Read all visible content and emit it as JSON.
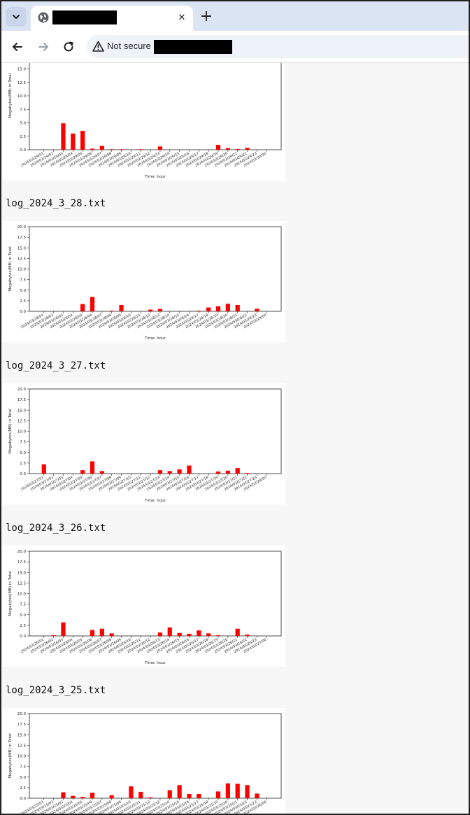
{
  "browser": {
    "tab_title": "",
    "url_security": "Not secure",
    "url": "",
    "tab_close_glyph": "✕",
    "new_tab_glyph": "+"
  },
  "colors": {
    "bar": "#ff0000",
    "tabstrip": "#dbe4f3"
  },
  "content": {
    "logs": [
      {
        "filename": ""
      },
      {
        "filename": "log_2024_3_28.txt"
      },
      {
        "filename": "log_2024_3_27.txt"
      },
      {
        "filename": "log_2024_3_26.txt"
      },
      {
        "filename": "log_2024_3_25.txt"
      }
    ]
  },
  "chart_data": [
    {
      "type": "bar",
      "ylabel": "Megabytes(MB) in Total",
      "xlabel": "Time: hour",
      "ylim": [
        0,
        20
      ],
      "yticks": [
        "0.0",
        "2.5",
        "5.0",
        "7.5",
        "10.0",
        "12.5",
        "15.0",
        "17.5",
        "20.0"
      ],
      "categories": [
        "2024/03/29/01",
        "2024/03/29/02",
        "2024/03/29/03",
        "2024/03/29/04",
        "2024/03/29/05",
        "2024/03/29/06",
        "2024/03/29/07",
        "2024/03/29/08",
        "2024/03/29/09",
        "2024/03/29/10",
        "2024/03/29/11",
        "2024/03/29/12",
        "2024/03/29/13",
        "2024/03/29/14",
        "2024/03/29/15",
        "2024/03/29/16",
        "2024/03/29/17",
        "2024/03/29/18",
        "2024/03/29/19",
        "2024/03/29/20",
        "2024/03/29/21",
        "2024/03/29/22",
        "2024/03/29/23",
        "2024/03/30/00"
      ],
      "values": [
        0,
        0,
        4.9,
        3.0,
        3.5,
        0.2,
        0.7,
        0.1,
        0.1,
        0,
        0.1,
        0,
        0.6,
        0,
        0,
        0,
        0,
        0,
        0.9,
        0.3,
        0.15,
        0.35,
        0,
        0
      ]
    },
    {
      "type": "bar",
      "ylabel": "Megabytes(MB) in Total",
      "xlabel": "Time: hour",
      "ylim": [
        0,
        20
      ],
      "yticks": [
        "0.0",
        "2.5",
        "5.0",
        "7.5",
        "10.0",
        "12.5",
        "15.0",
        "17.5",
        "20.0"
      ],
      "categories": [
        "2024/03/28/01",
        "2024/03/28/02",
        "2024/03/28/03",
        "2024/03/28/04",
        "2024/03/28/05",
        "2024/03/28/06",
        "2024/03/28/07",
        "2024/03/28/08",
        "2024/03/28/09",
        "2024/03/28/10",
        "2024/03/28/11",
        "2024/03/28/12",
        "2024/03/28/13",
        "2024/03/28/14",
        "2024/03/28/15",
        "2024/03/28/16",
        "2024/03/28/17",
        "2024/03/28/18",
        "2024/03/28/19",
        "2024/03/28/20",
        "2024/03/28/21",
        "2024/03/28/22",
        "2024/03/28/23",
        "2024/03/29/00"
      ],
      "values": [
        0,
        0,
        0,
        0,
        1.7,
        3.4,
        0,
        0.15,
        1.5,
        0,
        0,
        0.4,
        0.55,
        0,
        0,
        0,
        0.15,
        0.9,
        1.2,
        1.8,
        1.5,
        0,
        0.6,
        0
      ]
    },
    {
      "type": "bar",
      "ylabel": "Megabytes(MB) in Total",
      "xlabel": "Time: hour",
      "ylim": [
        0,
        20
      ],
      "yticks": [
        "0.0",
        "2.5",
        "5.0",
        "7.5",
        "10.0",
        "12.5",
        "15.0",
        "17.5",
        "20.0"
      ],
      "categories": [
        "2024/03/27/01",
        "2024/03/27/02",
        "2024/03/27/03",
        "2024/03/27/04",
        "2024/03/27/05",
        "2024/03/27/06",
        "2024/03/27/07",
        "2024/03/27/08",
        "2024/03/27/09",
        "2024/03/27/10",
        "2024/03/27/11",
        "2024/03/27/12",
        "2024/03/27/13",
        "2024/03/27/14",
        "2024/03/27/15",
        "2024/03/27/16",
        "2024/03/27/17",
        "2024/03/27/18",
        "2024/03/27/19",
        "2024/03/27/20",
        "2024/03/27/21",
        "2024/03/27/22",
        "2024/03/27/23",
        "2024/03/28/00"
      ],
      "values": [
        2.2,
        0,
        0,
        0,
        0.8,
        2.9,
        0.6,
        0,
        0,
        0,
        0,
        0,
        0.8,
        0.6,
        1.0,
        1.9,
        0,
        0,
        0.5,
        0.7,
        1.3,
        0.15,
        0,
        0
      ]
    },
    {
      "type": "bar",
      "ylabel": "Megabytes(MB) in Total",
      "xlabel": "Time: hour",
      "ylim": [
        0,
        20
      ],
      "yticks": [
        "0.0",
        "2.5",
        "5.0",
        "7.5",
        "10.0",
        "12.5",
        "15.0",
        "17.5",
        "20.0"
      ],
      "categories": [
        "2024/03/26/01",
        "2024/03/26/02",
        "2024/03/26/03",
        "2024/03/26/04",
        "2024/03/26/05",
        "2024/03/26/06",
        "2024/03/26/07",
        "2024/03/26/08",
        "2024/03/26/09",
        "2024/03/26/10",
        "2024/03/26/11",
        "2024/03/26/12",
        "2024/03/26/13",
        "2024/03/26/14",
        "2024/03/26/15",
        "2024/03/26/16",
        "2024/03/26/17",
        "2024/03/26/18",
        "2024/03/26/19",
        "2024/03/26/20",
        "2024/03/26/21",
        "2024/03/26/22",
        "2024/03/26/23",
        "2024/03/27/00"
      ],
      "values": [
        0,
        0.15,
        3.2,
        0,
        0,
        1.4,
        1.7,
        0.6,
        0,
        0,
        0,
        0,
        0.8,
        2.0,
        0.7,
        0.5,
        1.3,
        0.6,
        0.15,
        0,
        1.7,
        0.3,
        0,
        0
      ]
    },
    {
      "type": "bar",
      "ylabel": "Megabytes(MB) in Total",
      "xlabel": "",
      "ylim": [
        0,
        20
      ],
      "yticks": [
        "0.0",
        "2.5",
        "5.0",
        "7.5",
        "10.0",
        "12.5",
        "15.0",
        "17.5",
        "20.0"
      ],
      "categories": [
        "2024/03/25/01",
        "2024/03/25/02",
        "2024/03/25/03",
        "2024/03/25/04",
        "2024/03/25/05",
        "2024/03/25/06",
        "2024/03/25/07",
        "2024/03/25/08",
        "2024/03/25/09",
        "2024/03/25/10",
        "2024/03/25/11",
        "2024/03/25/12",
        "2024/03/25/13",
        "2024/03/25/14",
        "2024/03/25/15",
        "2024/03/25/16",
        "2024/03/25/17",
        "2024/03/25/18",
        "2024/03/25/19",
        "2024/03/25/20",
        "2024/03/25/21",
        "2024/03/25/22",
        "2024/03/25/23",
        "2024/03/26/00"
      ],
      "values": [
        0,
        0,
        1.4,
        0.55,
        0.3,
        1.3,
        0,
        0.7,
        0,
        2.8,
        1.5,
        0.2,
        0,
        1.9,
        3.1,
        1.0,
        1.0,
        0,
        1.6,
        3.5,
        3.4,
        3.1,
        1.1,
        0
      ]
    }
  ]
}
